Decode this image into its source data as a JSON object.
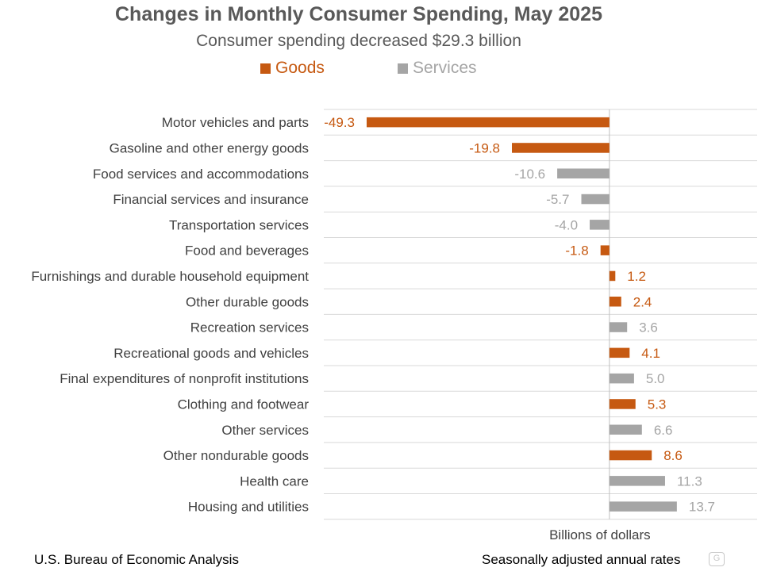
{
  "chart_data": {
    "type": "bar",
    "orientation": "horizontal",
    "title": "Changes in Monthly Consumer Spending, May 2025",
    "subtitle": "Consumer spending decreased $29.3 billion",
    "xlabel": "Billions of dollars",
    "xlim": [
      -58,
      30
    ],
    "colors": {
      "Goods": "#c65911",
      "Services": "#a5a5a5"
    },
    "legend": [
      {
        "name": "Goods",
        "color": "#c65911"
      },
      {
        "name": "Services",
        "color": "#a5a5a5"
      }
    ],
    "categories": [
      "Motor vehicles and parts",
      "Gasoline and other energy goods",
      "Food services and accommodations",
      "Financial services and insurance",
      "Transportation services",
      "Food and beverages",
      "Furnishings and durable household equipment",
      "Other durable goods",
      "Recreation services",
      "Recreational goods and vehicles",
      "Final expenditures of nonprofit institutions",
      "Clothing and footwear",
      "Other services",
      "Other nondurable goods",
      "Health care",
      "Housing and utilities"
    ],
    "values": [
      -49.3,
      -19.8,
      -10.6,
      -5.7,
      -4.0,
      -1.8,
      1.2,
      2.4,
      3.6,
      4.1,
      5.0,
      5.3,
      6.6,
      8.6,
      11.3,
      13.7
    ],
    "value_labels": [
      "-49.3",
      "-19.8",
      "-10.6",
      "-5.7",
      "-4.0",
      "-1.8",
      "1.2",
      "2.4",
      "3.6",
      "4.1",
      "5.0",
      "5.3",
      "6.6",
      "8.6",
      "11.3",
      "13.7"
    ],
    "groups": [
      "Goods",
      "Goods",
      "Services",
      "Services",
      "Services",
      "Goods",
      "Goods",
      "Goods",
      "Services",
      "Goods",
      "Services",
      "Goods",
      "Services",
      "Goods",
      "Services",
      "Services"
    ],
    "grid": true
  },
  "footer": {
    "source": "U.S. Bureau of Economic Analysis",
    "note": "Seasonally adjusted annual rates"
  }
}
